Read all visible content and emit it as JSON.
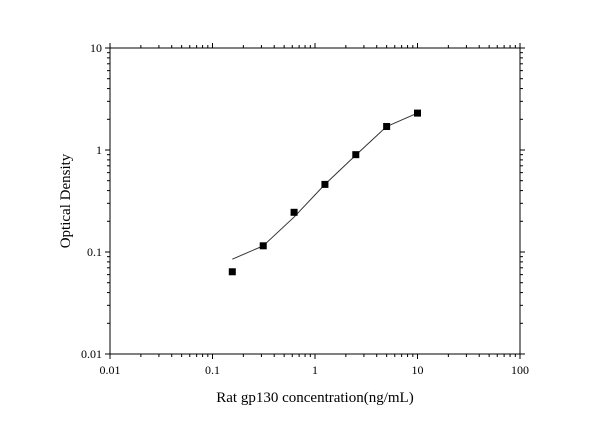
{
  "chart_data": {
    "type": "scatter",
    "xlabel": "Rat gp130 concentration(ng/mL)",
    "ylabel": "Optical Density",
    "xscale": "log",
    "yscale": "log",
    "xlim": [
      0.01,
      100
    ],
    "ylim": [
      0.01,
      10
    ],
    "xticks": [
      "0.01",
      "0.1",
      "1",
      "10",
      "100"
    ],
    "yticks": [
      "0.01",
      "0.1",
      "1",
      "10"
    ],
    "grid": false,
    "series": [
      {
        "kind": "points",
        "marker": "square",
        "color": "#000000",
        "x": [
          0.156,
          0.3125,
          0.625,
          1.25,
          2.5,
          5,
          10
        ],
        "y": [
          0.064,
          0.115,
          0.245,
          0.46,
          0.9,
          1.7,
          2.3
        ]
      },
      {
        "kind": "fit-line",
        "color": "#333333",
        "x": [
          0.156,
          0.3125,
          0.625,
          1.25,
          2.5,
          5,
          10
        ],
        "y": [
          0.085,
          0.115,
          0.22,
          0.46,
          0.89,
          1.7,
          2.3
        ]
      }
    ]
  }
}
